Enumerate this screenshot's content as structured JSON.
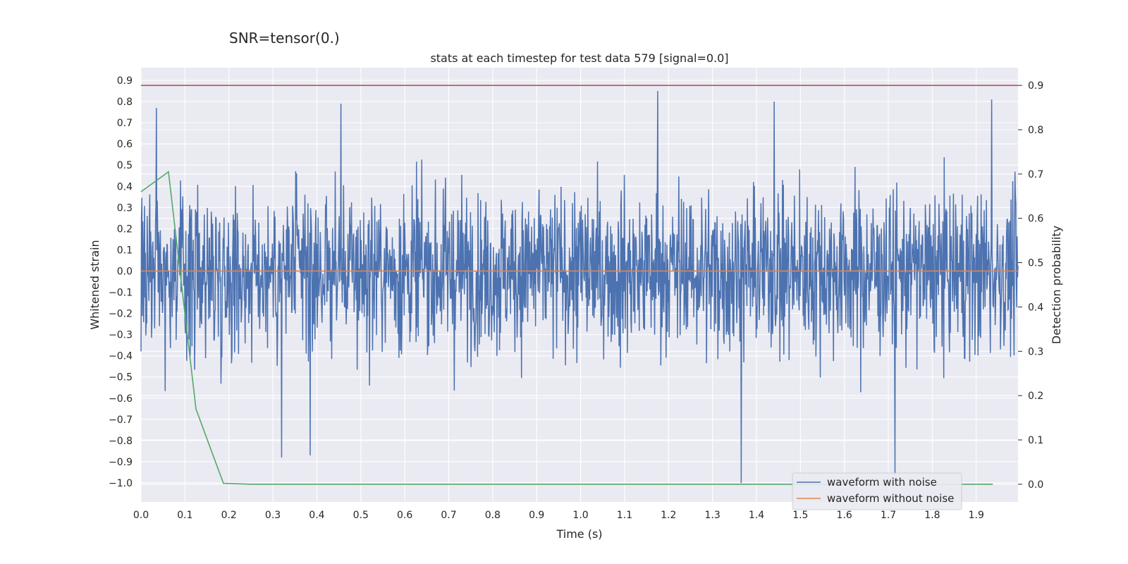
{
  "suptitle": "SNR=tensor(0.)",
  "chart_data": {
    "type": "line",
    "title": "stats at each timestep for test data 579 [signal=0.0]",
    "xlabel": "Time (s)",
    "ylabel": "Whitened strain",
    "y2label": "Detection probability",
    "xlim": [
      0.0,
      1.995
    ],
    "ylim": [
      -1.09,
      0.96
    ],
    "y2lim": [
      -0.04,
      0.94
    ],
    "x_ticks": [
      0.0,
      0.1,
      0.2,
      0.3,
      0.4,
      0.5,
      0.6,
      0.7,
      0.8,
      0.9,
      1.0,
      1.1,
      1.2,
      1.3,
      1.4,
      1.5,
      1.6,
      1.7,
      1.8,
      1.9
    ],
    "y_ticks": [
      -1.0,
      -0.9,
      -0.8,
      -0.7,
      -0.6,
      -0.5,
      -0.4,
      -0.3,
      -0.2,
      -0.1,
      0.0,
      0.1,
      0.2,
      0.3,
      0.4,
      0.5,
      0.6,
      0.7,
      0.8,
      0.9
    ],
    "y2_ticks": [
      0.0,
      0.1,
      0.2,
      0.3,
      0.4,
      0.5,
      0.6,
      0.7,
      0.8,
      0.9
    ],
    "y_tick_labels": [
      "−1.0",
      "−0.9",
      "−0.8",
      "−0.7",
      "−0.6",
      "−0.5",
      "−0.4",
      "−0.3",
      "−0.2",
      "−0.1",
      "0.0",
      "0.1",
      "0.2",
      "0.3",
      "0.4",
      "0.5",
      "0.6",
      "0.7",
      "0.8",
      "0.9"
    ],
    "grid": true,
    "legend_position": "bottom-right",
    "series": [
      {
        "name": "waveform with noise",
        "axis": "left",
        "color": "#4c72b0",
        "description": "dense whitened noise, approx 2000 samples",
        "x_range": [
          0.0,
          1.995
        ],
        "typical_range": [
          -0.5,
          0.5
        ],
        "peaks": [
          {
            "x": 0.035,
            "y": 0.77
          },
          {
            "x": 0.455,
            "y": 0.79
          },
          {
            "x": 1.175,
            "y": 0.85
          },
          {
            "x": 1.44,
            "y": 0.8
          },
          {
            "x": 1.935,
            "y": 0.81
          }
        ],
        "troughs": [
          {
            "x": 0.32,
            "y": -0.88
          },
          {
            "x": 0.385,
            "y": -0.87
          },
          {
            "x": 1.365,
            "y": -1.0
          },
          {
            "x": 1.715,
            "y": -0.96
          }
        ]
      },
      {
        "name": "waveform without noise",
        "axis": "left",
        "color": "#dd8452",
        "x": [
          0.0,
          1.995
        ],
        "y": [
          0.0,
          0.0
        ]
      },
      {
        "axis": "right",
        "color": "#55a868",
        "x": [
          0.0,
          0.0625,
          0.125,
          0.1875,
          0.25,
          1.9375
        ],
        "y": [
          0.66,
          0.705,
          0.17,
          0.002,
          0.0,
          0.0
        ]
      },
      {
        "axis": "right",
        "color": "#c44e52",
        "x": [
          0.0,
          1.995
        ],
        "y": [
          0.9,
          0.9
        ]
      }
    ]
  }
}
